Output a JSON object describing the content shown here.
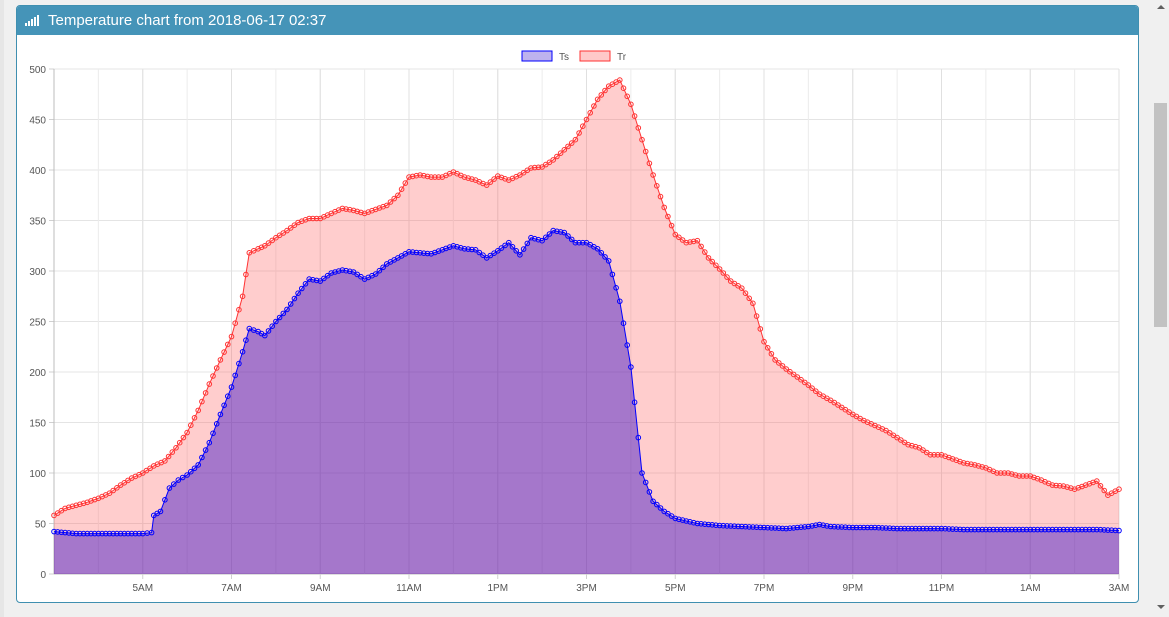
{
  "panel": {
    "title": "Temperature chart from 2018-06-17 02:37",
    "icon": "signal-bars-icon",
    "header_color": "#4594b8"
  },
  "chart_data": {
    "type": "line",
    "fill": true,
    "x_start": "3AM",
    "x_end": "3AM",
    "x_tick_labels": [
      "5AM",
      "7AM",
      "9AM",
      "11AM",
      "1PM",
      "3PM",
      "5PM",
      "7PM",
      "9PM",
      "11PM",
      "1AM",
      "3AM"
    ],
    "ylim": [
      0,
      500
    ],
    "y_ticks": [
      0,
      50,
      100,
      150,
      200,
      250,
      300,
      350,
      400,
      450,
      500
    ],
    "grid": true,
    "legend_position": "top-center",
    "series": [
      {
        "name": "Ts",
        "color": "#0000ff",
        "fill_color": "rgba(40,0,200,0.42)",
        "points": [
          [
            3.0,
            42
          ],
          [
            3.5,
            40
          ],
          [
            4.0,
            40
          ],
          [
            4.5,
            40
          ],
          [
            5.0,
            40
          ],
          [
            5.2,
            41
          ],
          [
            5.25,
            58
          ],
          [
            5.4,
            62
          ],
          [
            5.6,
            85
          ],
          [
            5.8,
            93
          ],
          [
            6.0,
            98
          ],
          [
            6.25,
            108
          ],
          [
            6.5,
            130
          ],
          [
            6.75,
            158
          ],
          [
            7.0,
            185
          ],
          [
            7.25,
            220
          ],
          [
            7.4,
            243
          ],
          [
            7.6,
            240
          ],
          [
            7.75,
            236
          ],
          [
            8.0,
            250
          ],
          [
            8.25,
            262
          ],
          [
            8.5,
            278
          ],
          [
            8.75,
            292
          ],
          [
            9.0,
            290
          ],
          [
            9.25,
            298
          ],
          [
            9.5,
            301
          ],
          [
            9.75,
            299
          ],
          [
            10.0,
            292
          ],
          [
            10.25,
            297
          ],
          [
            10.5,
            307
          ],
          [
            10.75,
            313
          ],
          [
            11.0,
            319
          ],
          [
            11.25,
            318
          ],
          [
            11.5,
            317
          ],
          [
            11.75,
            321
          ],
          [
            12.0,
            325
          ],
          [
            12.25,
            322
          ],
          [
            12.5,
            321
          ],
          [
            12.75,
            313
          ],
          [
            13.0,
            320
          ],
          [
            13.25,
            328
          ],
          [
            13.5,
            316
          ],
          [
            13.75,
            333
          ],
          [
            14.0,
            330
          ],
          [
            14.25,
            340
          ],
          [
            14.5,
            338
          ],
          [
            14.75,
            328
          ],
          [
            15.0,
            328
          ],
          [
            15.25,
            322
          ],
          [
            15.5,
            310
          ],
          [
            15.75,
            270
          ],
          [
            16.0,
            205
          ],
          [
            16.25,
            100
          ],
          [
            16.5,
            72
          ],
          [
            16.75,
            62
          ],
          [
            17.0,
            55
          ],
          [
            17.5,
            50
          ],
          [
            18.0,
            48
          ],
          [
            18.5,
            47
          ],
          [
            19.0,
            46
          ],
          [
            19.5,
            45
          ],
          [
            20.0,
            47
          ],
          [
            20.25,
            49
          ],
          [
            20.5,
            47
          ],
          [
            21.0,
            46
          ],
          [
            21.5,
            46
          ],
          [
            22.0,
            45
          ],
          [
            22.5,
            45
          ],
          [
            23.0,
            45
          ],
          [
            23.5,
            44
          ],
          [
            24.0,
            44
          ],
          [
            24.5,
            44
          ],
          [
            25.0,
            44
          ],
          [
            25.5,
            44
          ],
          [
            26.0,
            44
          ],
          [
            26.5,
            44
          ],
          [
            27.0,
            43
          ]
        ]
      },
      {
        "name": "Tr",
        "color": "#ff3333",
        "fill_color": "rgba(255,100,100,0.32)",
        "points": [
          [
            3.0,
            58
          ],
          [
            3.25,
            65
          ],
          [
            3.5,
            68
          ],
          [
            3.75,
            71
          ],
          [
            4.0,
            75
          ],
          [
            4.25,
            80
          ],
          [
            4.5,
            88
          ],
          [
            4.75,
            95
          ],
          [
            5.0,
            100
          ],
          [
            5.25,
            107
          ],
          [
            5.5,
            112
          ],
          [
            5.75,
            125
          ],
          [
            6.0,
            140
          ],
          [
            6.25,
            162
          ],
          [
            6.5,
            188
          ],
          [
            6.75,
            212
          ],
          [
            7.0,
            235
          ],
          [
            7.25,
            275
          ],
          [
            7.4,
            318
          ],
          [
            7.6,
            322
          ],
          [
            7.75,
            325
          ],
          [
            8.0,
            333
          ],
          [
            8.25,
            340
          ],
          [
            8.5,
            348
          ],
          [
            8.75,
            352
          ],
          [
            9.0,
            352
          ],
          [
            9.25,
            357
          ],
          [
            9.5,
            362
          ],
          [
            9.75,
            360
          ],
          [
            10.0,
            357
          ],
          [
            10.25,
            361
          ],
          [
            10.5,
            365
          ],
          [
            10.75,
            375
          ],
          [
            11.0,
            393
          ],
          [
            11.25,
            395
          ],
          [
            11.5,
            393
          ],
          [
            11.75,
            393
          ],
          [
            12.0,
            398
          ],
          [
            12.25,
            393
          ],
          [
            12.5,
            390
          ],
          [
            12.75,
            385
          ],
          [
            13.0,
            394
          ],
          [
            13.25,
            390
          ],
          [
            13.5,
            395
          ],
          [
            13.75,
            402
          ],
          [
            14.0,
            403
          ],
          [
            14.25,
            410
          ],
          [
            14.5,
            420
          ],
          [
            14.75,
            430
          ],
          [
            15.0,
            450
          ],
          [
            15.25,
            470
          ],
          [
            15.5,
            483
          ],
          [
            15.75,
            489
          ],
          [
            16.0,
            465
          ],
          [
            16.25,
            430
          ],
          [
            16.5,
            395
          ],
          [
            16.75,
            363
          ],
          [
            17.0,
            336
          ],
          [
            17.25,
            328
          ],
          [
            17.5,
            330
          ],
          [
            17.75,
            313
          ],
          [
            18.0,
            302
          ],
          [
            18.25,
            290
          ],
          [
            18.5,
            283
          ],
          [
            18.75,
            268
          ],
          [
            19.0,
            230
          ],
          [
            19.25,
            212
          ],
          [
            19.5,
            203
          ],
          [
            19.75,
            195
          ],
          [
            20.0,
            187
          ],
          [
            20.25,
            178
          ],
          [
            20.5,
            172
          ],
          [
            20.75,
            165
          ],
          [
            21.0,
            158
          ],
          [
            21.25,
            152
          ],
          [
            21.5,
            147
          ],
          [
            21.75,
            142
          ],
          [
            22.0,
            135
          ],
          [
            22.25,
            128
          ],
          [
            22.5,
            125
          ],
          [
            22.75,
            118
          ],
          [
            23.0,
            118
          ],
          [
            23.25,
            114
          ],
          [
            23.5,
            110
          ],
          [
            23.75,
            108
          ],
          [
            24.0,
            105
          ],
          [
            24.25,
            100
          ],
          [
            24.5,
            100
          ],
          [
            24.75,
            97
          ],
          [
            25.0,
            97
          ],
          [
            25.25,
            93
          ],
          [
            25.5,
            88
          ],
          [
            25.75,
            87
          ],
          [
            26.0,
            84
          ],
          [
            26.25,
            88
          ],
          [
            26.5,
            92
          ],
          [
            26.75,
            78
          ],
          [
            27.0,
            84
          ]
        ]
      }
    ]
  }
}
